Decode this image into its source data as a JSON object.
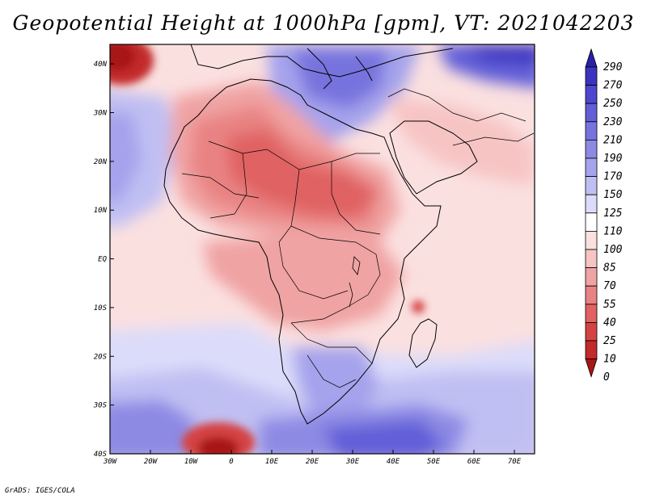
{
  "title": "Geopotential Height at 1000hPa [gpm], VT: 2021042203",
  "credit": "GrADS: IGES/COLA",
  "map": {
    "variable": "Geopotential Height",
    "level": "1000hPa",
    "units": "gpm",
    "valid_time": "2021042203",
    "lat_labels": [
      "40N",
      "30N",
      "20N",
      "10N",
      "EQ",
      "10S",
      "20S",
      "30S",
      "40S"
    ],
    "lon_labels": [
      "30W",
      "20W",
      "10W",
      "0",
      "10E",
      "20E",
      "30E",
      "40E",
      "50E",
      "60E",
      "70E"
    ],
    "lat_values": [
      40,
      30,
      20,
      10,
      0,
      -10,
      -20,
      -30,
      -40
    ],
    "lon_values": [
      -30,
      -20,
      -10,
      0,
      10,
      20,
      30,
      40,
      50,
      60,
      70
    ]
  },
  "colorbar": {
    "labels": [
      "290",
      "270",
      "250",
      "230",
      "210",
      "190",
      "170",
      "150",
      "125",
      "110",
      "100",
      "85",
      "70",
      "55",
      "40",
      "25",
      "10",
      "0"
    ],
    "colors": [
      "#2a1fa8",
      "#3b33c0",
      "#4d47cf",
      "#625ed8",
      "#7773de",
      "#8d8ae4",
      "#a5a3ec",
      "#c0bff3",
      "#dcdcfa",
      "#ffffff",
      "#fbe0e0",
      "#f7c4c4",
      "#f0a3a3",
      "#e98383",
      "#e06262",
      "#d44343",
      "#c32a2a",
      "#a81616"
    ]
  }
}
